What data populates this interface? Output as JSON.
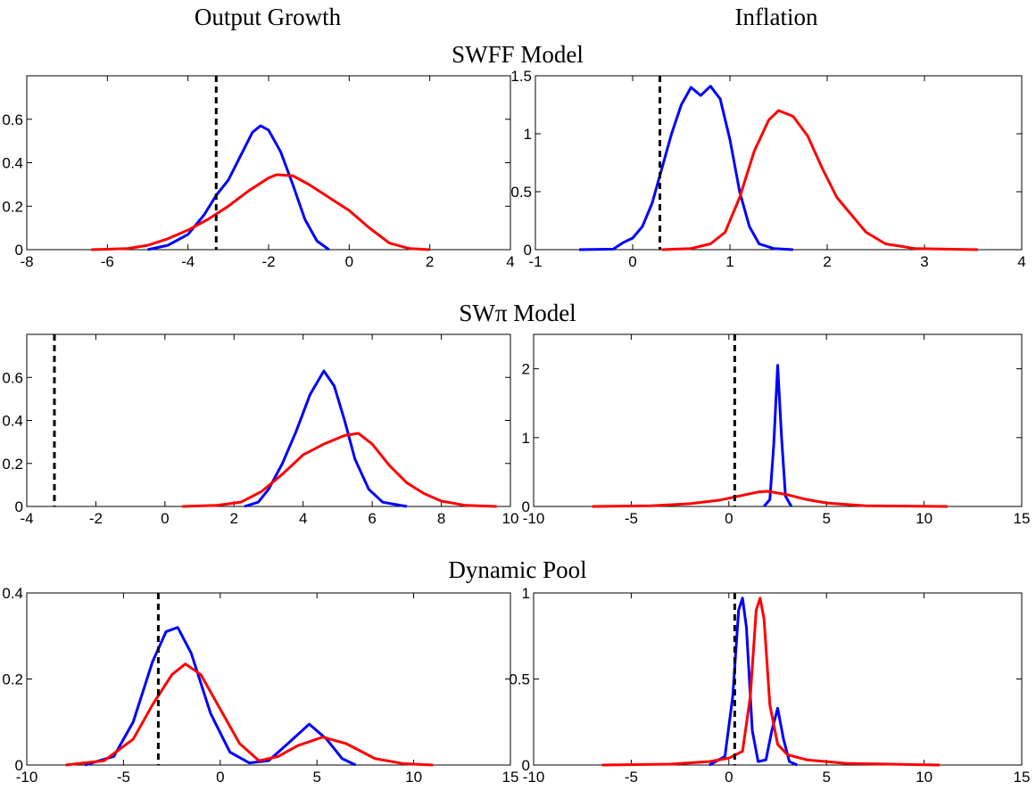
{
  "column_titles": [
    "Output Growth",
    "Inflation"
  ],
  "row_titles": [
    "SWFF Model",
    "SWπ Model",
    "Dynamic Pool"
  ],
  "chart_data": [
    {
      "type": "line",
      "xlim": [
        -8,
        4
      ],
      "xticks": [
        -8,
        -6,
        -4,
        -2,
        0,
        2,
        4
      ],
      "ylim": [
        0,
        0.8
      ],
      "yticks": [
        0,
        0.2,
        0.4,
        0.6
      ],
      "vline": -3.3,
      "vline_color": "#000000",
      "series": [
        {
          "color": "#0000ff",
          "x": [
            -5,
            -4.5,
            -4,
            -3.6,
            -3.3,
            -3,
            -2.7,
            -2.4,
            -2.2,
            -2,
            -1.7,
            -1.4,
            -1.1,
            -0.8,
            -0.5
          ],
          "values": [
            0,
            0.02,
            0.07,
            0.16,
            0.25,
            0.32,
            0.43,
            0.54,
            0.57,
            0.55,
            0.45,
            0.3,
            0.14,
            0.04,
            0
          ]
        },
        {
          "color": "#ff0000",
          "x": [
            -6.4,
            -5.5,
            -5,
            -4.5,
            -4,
            -3.5,
            -3,
            -2.5,
            -2,
            -1.8,
            -1.4,
            -1,
            -0.5,
            0,
            0.5,
            1,
            1.5,
            2
          ],
          "values": [
            0,
            0.005,
            0.02,
            0.05,
            0.09,
            0.14,
            0.2,
            0.27,
            0.33,
            0.345,
            0.34,
            0.3,
            0.24,
            0.18,
            0.1,
            0.03,
            0.005,
            0
          ]
        }
      ]
    },
    {
      "type": "line",
      "xlim": [
        -1,
        4
      ],
      "xticks": [
        -1,
        0,
        1,
        2,
        3,
        4
      ],
      "ylim": [
        0,
        1.5
      ],
      "yticks": [
        0,
        0.5,
        1,
        1.5
      ],
      "vline": 0.28,
      "vline_color": "#000000",
      "series": [
        {
          "color": "#0000ff",
          "x": [
            -0.55,
            -0.2,
            -0.1,
            0,
            0.1,
            0.2,
            0.3,
            0.4,
            0.5,
            0.6,
            0.7,
            0.8,
            0.9,
            1,
            1.1,
            1.2,
            1.3,
            1.45,
            1.65
          ],
          "values": [
            0,
            0.005,
            0.06,
            0.1,
            0.2,
            0.4,
            0.7,
            1.0,
            1.25,
            1.4,
            1.33,
            1.41,
            1.3,
            0.95,
            0.5,
            0.2,
            0.05,
            0.01,
            0
          ]
        },
        {
          "color": "#ff0000",
          "x": [
            0.3,
            0.6,
            0.8,
            0.95,
            1.1,
            1.25,
            1.4,
            1.5,
            1.65,
            1.8,
            1.95,
            2.1,
            2.25,
            2.4,
            2.6,
            2.9,
            3.55
          ],
          "values": [
            0,
            0.01,
            0.05,
            0.15,
            0.45,
            0.85,
            1.12,
            1.2,
            1.15,
            0.98,
            0.7,
            0.45,
            0.3,
            0.15,
            0.05,
            0.01,
            0
          ]
        }
      ]
    },
    {
      "type": "line",
      "xlim": [
        -4,
        10
      ],
      "xticks": [
        -4,
        -2,
        0,
        2,
        4,
        6,
        8,
        10
      ],
      "ylim": [
        0,
        0.8
      ],
      "yticks": [
        0,
        0.2,
        0.4,
        0.6
      ],
      "vline": -3.2,
      "vline_color": "#000000",
      "series": [
        {
          "color": "#0000ff",
          "x": [
            2.3,
            2.7,
            3,
            3.4,
            3.8,
            4.2,
            4.6,
            4.9,
            5.2,
            5.5,
            5.9,
            6.3,
            7
          ],
          "values": [
            0,
            0.02,
            0.08,
            0.2,
            0.35,
            0.52,
            0.63,
            0.56,
            0.4,
            0.22,
            0.08,
            0.02,
            0
          ]
        },
        {
          "color": "#ff0000",
          "x": [
            0.5,
            1.5,
            2.2,
            2.8,
            3.4,
            4,
            4.6,
            5.2,
            5.6,
            6,
            6.5,
            7,
            7.5,
            8,
            8.7,
            9.6
          ],
          "values": [
            0,
            0.005,
            0.02,
            0.07,
            0.15,
            0.24,
            0.29,
            0.33,
            0.34,
            0.29,
            0.19,
            0.11,
            0.06,
            0.025,
            0.005,
            0
          ]
        }
      ]
    },
    {
      "type": "line",
      "xlim": [
        -10,
        15
      ],
      "xticks": [
        -10,
        -5,
        0,
        5,
        10,
        15
      ],
      "ylim": [
        0,
        2.5
      ],
      "yticks": [
        0,
        1,
        2
      ],
      "vline": 0.3,
      "vline_color": "#000000",
      "series": [
        {
          "color": "#0000ff",
          "x": [
            1.8,
            2.1,
            2.3,
            2.5,
            2.7,
            2.9,
            3.2
          ],
          "values": [
            0,
            0.1,
            0.9,
            2.05,
            1.0,
            0.15,
            0
          ]
        },
        {
          "color": "#ff0000",
          "x": [
            -7,
            -4,
            -2,
            -0.5,
            0.5,
            1.5,
            2,
            3,
            4,
            5,
            7,
            11.2
          ],
          "values": [
            0,
            0.01,
            0.04,
            0.09,
            0.15,
            0.21,
            0.22,
            0.17,
            0.1,
            0.05,
            0.01,
            0
          ]
        }
      ]
    },
    {
      "type": "line",
      "xlim": [
        -10,
        15
      ],
      "xticks": [
        -10,
        -5,
        0,
        5,
        10,
        15
      ],
      "ylim": [
        0,
        0.4
      ],
      "yticks": [
        0,
        0.2,
        0.4
      ],
      "vline": -3.2,
      "vline_color": "#000000",
      "series": [
        {
          "color": "#0000ff",
          "x": [
            -7,
            -5.5,
            -4.5,
            -3.5,
            -2.8,
            -2.2,
            -1.5,
            -0.5,
            0.5,
            1.5,
            2.5,
            3.5,
            4.6,
            5.5,
            6.3,
            7
          ],
          "values": [
            0,
            0.02,
            0.1,
            0.24,
            0.31,
            0.32,
            0.26,
            0.12,
            0.03,
            0.005,
            0.01,
            0.05,
            0.095,
            0.06,
            0.015,
            0
          ]
        },
        {
          "color": "#ff0000",
          "x": [
            -8,
            -6,
            -4.5,
            -3.5,
            -2.5,
            -1.8,
            -1,
            0,
            1,
            2,
            3,
            4,
            5.3,
            6.5,
            8,
            9.5,
            11
          ],
          "values": [
            0,
            0.01,
            0.06,
            0.14,
            0.21,
            0.235,
            0.21,
            0.13,
            0.05,
            0.01,
            0.02,
            0.045,
            0.065,
            0.05,
            0.015,
            0.003,
            0
          ]
        }
      ]
    },
    {
      "type": "line",
      "xlim": [
        -10,
        15
      ],
      "xticks": [
        -10,
        -5,
        0,
        5,
        10,
        15
      ],
      "ylim": [
        0,
        1
      ],
      "yticks": [
        0,
        0.5,
        1
      ],
      "vline": 0.3,
      "vline_color": "#000000",
      "series": [
        {
          "color": "#0000ff",
          "x": [
            -1,
            -0.2,
            0.2,
            0.5,
            0.7,
            0.9,
            1.2,
            1.5,
            1.9,
            2.2,
            2.5,
            2.8,
            3.1,
            3.5
          ],
          "values": [
            0,
            0.05,
            0.4,
            0.9,
            0.97,
            0.8,
            0.2,
            0.02,
            0.03,
            0.2,
            0.33,
            0.15,
            0.02,
            0
          ]
        },
        {
          "color": "#ff0000",
          "x": [
            -6.5,
            -3,
            -1,
            0,
            0.7,
            1.1,
            1.4,
            1.6,
            1.8,
            2.1,
            2.5,
            3,
            4,
            6,
            10.8
          ],
          "values": [
            0,
            0.005,
            0.02,
            0.04,
            0.08,
            0.4,
            0.9,
            0.97,
            0.85,
            0.35,
            0.12,
            0.06,
            0.03,
            0.01,
            0
          ]
        }
      ]
    }
  ]
}
